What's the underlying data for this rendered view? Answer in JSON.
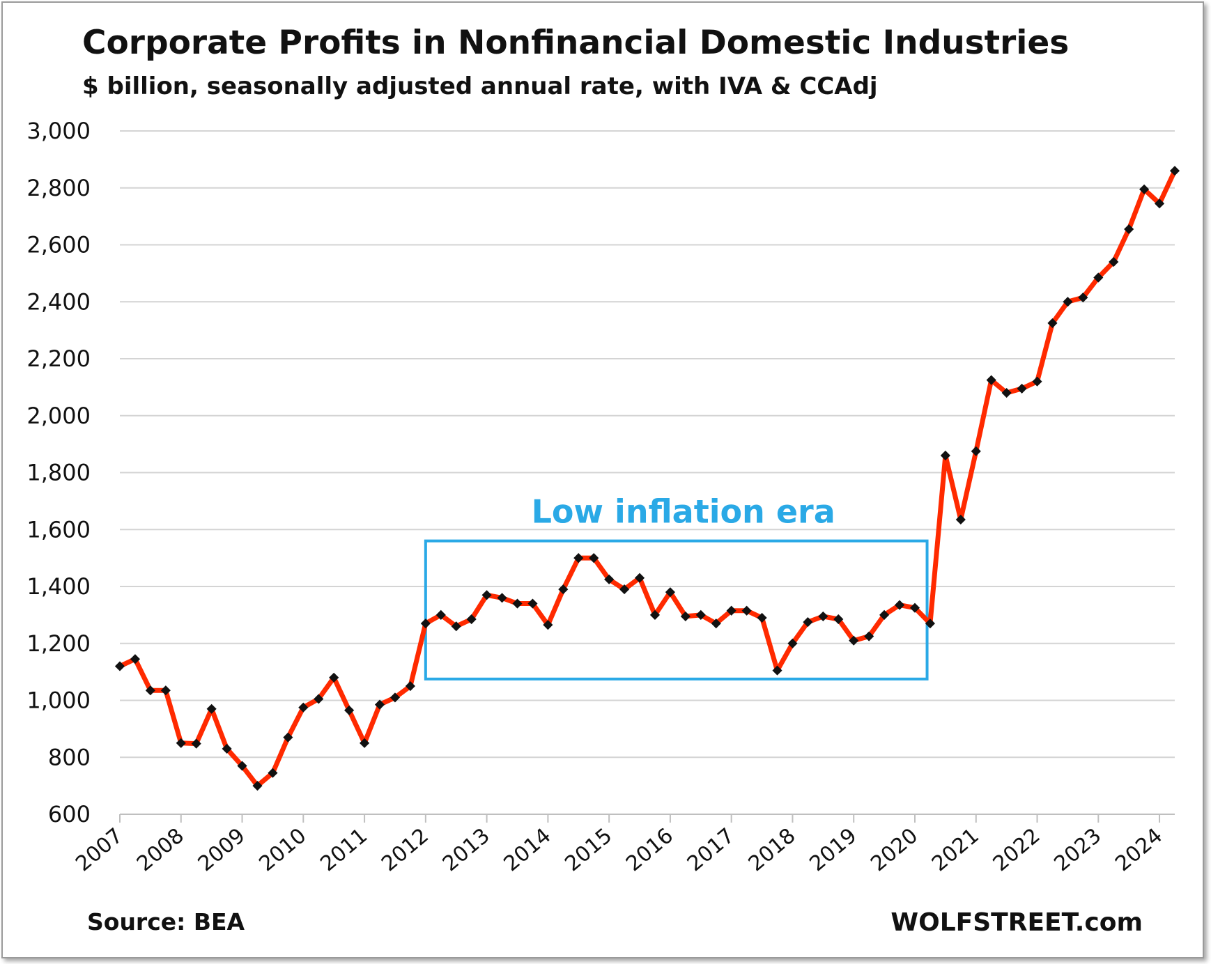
{
  "chart_data": {
    "type": "line",
    "title": "Corporate Profits in Nonfinancial Domestic Industries",
    "subtitle": "$ billion, seasonally adjusted annual rate, with IVA & CCAdj",
    "source": "Source: BEA",
    "brand": "WOLFSTREET.com",
    "y_ticks": [
      "600",
      "800",
      "1,000",
      "1,200",
      "1,400",
      "1,600",
      "1,800",
      "2,000",
      "2,200",
      "2,400",
      "2,600",
      "2,800",
      "3,000"
    ],
    "ylim": [
      600,
      3000
    ],
    "x_ticks": [
      "2007",
      "2008",
      "2009",
      "2010",
      "2011",
      "2012",
      "2013",
      "2014",
      "2015",
      "2016",
      "2017",
      "2018",
      "2019",
      "2020",
      "2021",
      "2022",
      "2023",
      "2024"
    ],
    "xlim": [
      2007,
      2024.25
    ],
    "grid": "horizontal",
    "line_color": "#ff2a00",
    "marker_color": "#111111",
    "series": [
      {
        "x": [
          2007,
          2007.25,
          2007.5,
          2007.75,
          2008,
          2008.25,
          2008.5,
          2008.75,
          2009,
          2009.25,
          2009.5,
          2009.75,
          2010,
          2010.25,
          2010.5,
          2010.75,
          2011,
          2011.25,
          2011.5,
          2011.75,
          2012,
          2012.25,
          2012.5,
          2012.75,
          2013,
          2013.25,
          2013.5,
          2013.75,
          2014,
          2014.25,
          2014.5,
          2014.75,
          2015,
          2015.25,
          2015.5,
          2015.75,
          2016,
          2016.25,
          2016.5,
          2016.75,
          2017,
          2017.25,
          2017.5,
          2017.75,
          2018,
          2018.25,
          2018.5,
          2018.75,
          2019,
          2019.25,
          2019.5,
          2019.75,
          2020,
          2020.25,
          2020.5,
          2020.75,
          2021,
          2021.25,
          2021.5,
          2021.75,
          2022,
          2022.25,
          2022.5,
          2022.75,
          2023,
          2023.25,
          2023.5,
          2023.75,
          2024,
          2024.25
        ],
        "values": [
          1120,
          1145,
          1035,
          1035,
          850,
          848,
          970,
          830,
          770,
          700,
          745,
          870,
          975,
          1005,
          1080,
          965,
          850,
          985,
          1010,
          1050,
          1270,
          1300,
          1260,
          1285,
          1370,
          1360,
          1340,
          1340,
          1265,
          1390,
          1500,
          1500,
          1425,
          1390,
          1430,
          1300,
          1380,
          1295,
          1300,
          1270,
          1315,
          1315,
          1290,
          1105,
          1200,
          1275,
          1295,
          1285,
          1210,
          1225,
          1300,
          1335,
          1325,
          1270,
          1860,
          1635,
          1875,
          2125,
          2080,
          2095,
          2120,
          2325,
          2400,
          2415,
          2485,
          2540,
          2655,
          2795,
          2745,
          2860
        ]
      }
    ],
    "annotation": {
      "label": "Low inflation era",
      "x_range": [
        2012,
        2020.2
      ],
      "y_range": [
        1075,
        1560
      ],
      "color": "#2aa9e6"
    }
  }
}
